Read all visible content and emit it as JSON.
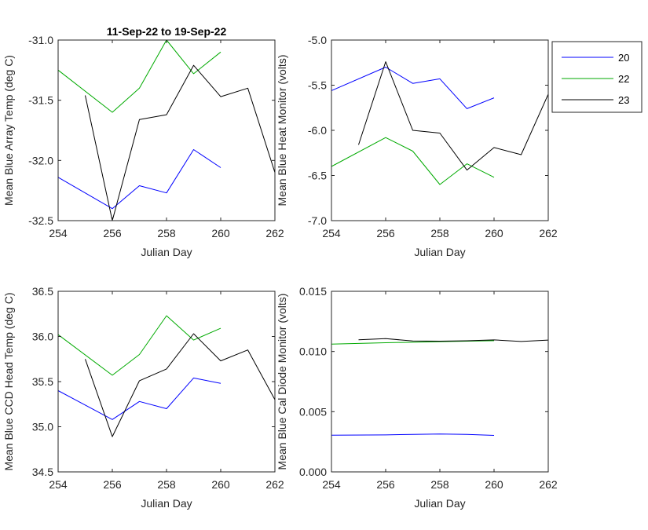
{
  "figure": {
    "title": "11-Sep-22 to 19-Sep-22",
    "legend": {
      "placement": "outside-right",
      "entries": [
        {
          "label": "20",
          "color": "#0000ff"
        },
        {
          "label": "22",
          "color": "#00aa00"
        },
        {
          "label": "23",
          "color": "#000000"
        }
      ]
    }
  },
  "chart_data": [
    {
      "type": "line",
      "title": "11-Sep-22 to 19-Sep-22",
      "xlabel": "Julian Day",
      "ylabel": "Mean Blue Array Temp (deg C)",
      "xlim": [
        254,
        262
      ],
      "ylim": [
        -32.5,
        -31.0
      ],
      "xticks": [
        254,
        256,
        258,
        260,
        262
      ],
      "yticks": [
        -32.5,
        -32.0,
        -31.5,
        -31.0
      ],
      "xtick_labels": [
        "254",
        "256",
        "258",
        "260",
        "262"
      ],
      "ytick_labels": [
        "-32.5",
        "-32.0",
        "-31.5",
        "-31.0"
      ],
      "series": [
        {
          "name": "20",
          "color": "#0000ff",
          "x": [
            254,
            256,
            257,
            258,
            259,
            260
          ],
          "y": [
            -32.14,
            -32.4,
            -32.21,
            -32.27,
            -31.91,
            -32.06
          ]
        },
        {
          "name": "22",
          "color": "#00aa00",
          "x": [
            254,
            256,
            257,
            258,
            259,
            260
          ],
          "y": [
            -31.25,
            -31.6,
            -31.4,
            -31.0,
            -31.28,
            -31.1
          ]
        },
        {
          "name": "23",
          "color": "#000000",
          "x": [
            255,
            256,
            257,
            258,
            259,
            260,
            261,
            262
          ],
          "y": [
            -31.46,
            -32.5,
            -31.66,
            -31.62,
            -31.21,
            -31.47,
            -31.4,
            -32.1
          ]
        }
      ]
    },
    {
      "type": "line",
      "title": "",
      "xlabel": "Julian Day",
      "ylabel": "Mean Blue Heat Monitor (volts)",
      "xlim": [
        254,
        262
      ],
      "ylim": [
        -7.0,
        -5.0
      ],
      "xticks": [
        254,
        256,
        258,
        260,
        262
      ],
      "yticks": [
        -7.0,
        -6.5,
        -6.0,
        -5.5,
        -5.0
      ],
      "xtick_labels": [
        "254",
        "256",
        "258",
        "260",
        "262"
      ],
      "ytick_labels": [
        "-7.0",
        "-6.5",
        "-6.0",
        "-5.5",
        "-5.0"
      ],
      "series": [
        {
          "name": "20",
          "color": "#0000ff",
          "x": [
            254,
            256,
            257,
            258,
            259,
            260
          ],
          "y": [
            -5.56,
            -5.3,
            -5.48,
            -5.43,
            -5.76,
            -5.64
          ]
        },
        {
          "name": "22",
          "color": "#00aa00",
          "x": [
            254,
            256,
            257,
            258,
            259,
            260
          ],
          "y": [
            -6.4,
            -6.08,
            -6.23,
            -6.6,
            -6.37,
            -6.52
          ]
        },
        {
          "name": "23",
          "color": "#000000",
          "x": [
            255,
            256,
            257,
            258,
            259,
            260,
            261,
            262
          ],
          "y": [
            -6.16,
            -5.24,
            -6.0,
            -6.03,
            -6.44,
            -6.19,
            -6.27,
            -5.6
          ]
        }
      ]
    },
    {
      "type": "line",
      "title": "",
      "xlabel": "Julian Day",
      "ylabel": "Mean Blue CCD Head Temp (deg C)",
      "xlim": [
        254,
        262
      ],
      "ylim": [
        34.5,
        36.5
      ],
      "xticks": [
        254,
        256,
        258,
        260,
        262
      ],
      "yticks": [
        34.5,
        35.0,
        35.5,
        36.0,
        36.5
      ],
      "xtick_labels": [
        "254",
        "256",
        "258",
        "260",
        "262"
      ],
      "ytick_labels": [
        "34.5",
        "35.0",
        "35.5",
        "36.0",
        "36.5"
      ],
      "series": [
        {
          "name": "20",
          "color": "#0000ff",
          "x": [
            254,
            256,
            257,
            258,
            259,
            260
          ],
          "y": [
            35.4,
            35.08,
            35.28,
            35.2,
            35.54,
            35.48
          ]
        },
        {
          "name": "22",
          "color": "#00aa00",
          "x": [
            254,
            256,
            257,
            258,
            259,
            260
          ],
          "y": [
            36.02,
            35.57,
            35.8,
            36.23,
            35.96,
            36.09
          ]
        },
        {
          "name": "23",
          "color": "#000000",
          "x": [
            255,
            256,
            257,
            258,
            259,
            260,
            261,
            262
          ],
          "y": [
            35.75,
            34.89,
            35.51,
            35.64,
            36.03,
            35.73,
            35.85,
            35.3
          ]
        }
      ]
    },
    {
      "type": "line",
      "title": "",
      "xlabel": "Julian Day",
      "ylabel": "Mean Blue Cal Diode Monitor (volts)",
      "xlim": [
        254,
        262
      ],
      "ylim": [
        0.0,
        0.015
      ],
      "xticks": [
        254,
        256,
        258,
        260,
        262
      ],
      "yticks": [
        0.0,
        0.005,
        0.01,
        0.015
      ],
      "xtick_labels": [
        "254",
        "256",
        "258",
        "260",
        "262"
      ],
      "ytick_labels": [
        "0.000",
        "0.005",
        "0.010",
        "0.015"
      ],
      "series": [
        {
          "name": "20",
          "color": "#0000ff",
          "x": [
            254,
            256,
            257,
            258,
            259,
            260
          ],
          "y": [
            0.00305,
            0.00307,
            0.00312,
            0.00315,
            0.00311,
            0.00303
          ]
        },
        {
          "name": "22",
          "color": "#00aa00",
          "x": [
            254,
            256,
            257,
            258,
            259,
            260
          ],
          "y": [
            0.01062,
            0.01073,
            0.01077,
            0.01082,
            0.01086,
            0.0109
          ]
        },
        {
          "name": "23",
          "color": "#000000",
          "x": [
            255,
            256,
            257,
            258,
            259,
            260,
            261,
            262
          ],
          "y": [
            0.01097,
            0.01107,
            0.01088,
            0.01086,
            0.01089,
            0.01096,
            0.01083,
            0.01095
          ]
        }
      ]
    }
  ]
}
